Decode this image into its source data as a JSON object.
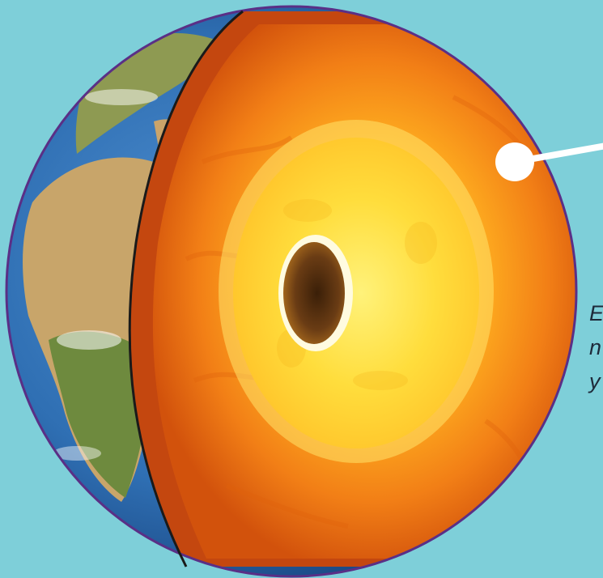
{
  "image": {
    "subject": "earth-cutaway-layers",
    "colors": {
      "background": "#7ecfd9",
      "ocean": "#2f6fb3",
      "land": "#b89a63",
      "crust_edge": "#b8420f",
      "mantle": "#f07a18",
      "outer_core": "#ffd23a",
      "inner_core": "#5a3212",
      "outline": "#5a2f86"
    }
  },
  "caption": {
    "lines": [
      "E",
      "n",
      "y"
    ]
  }
}
